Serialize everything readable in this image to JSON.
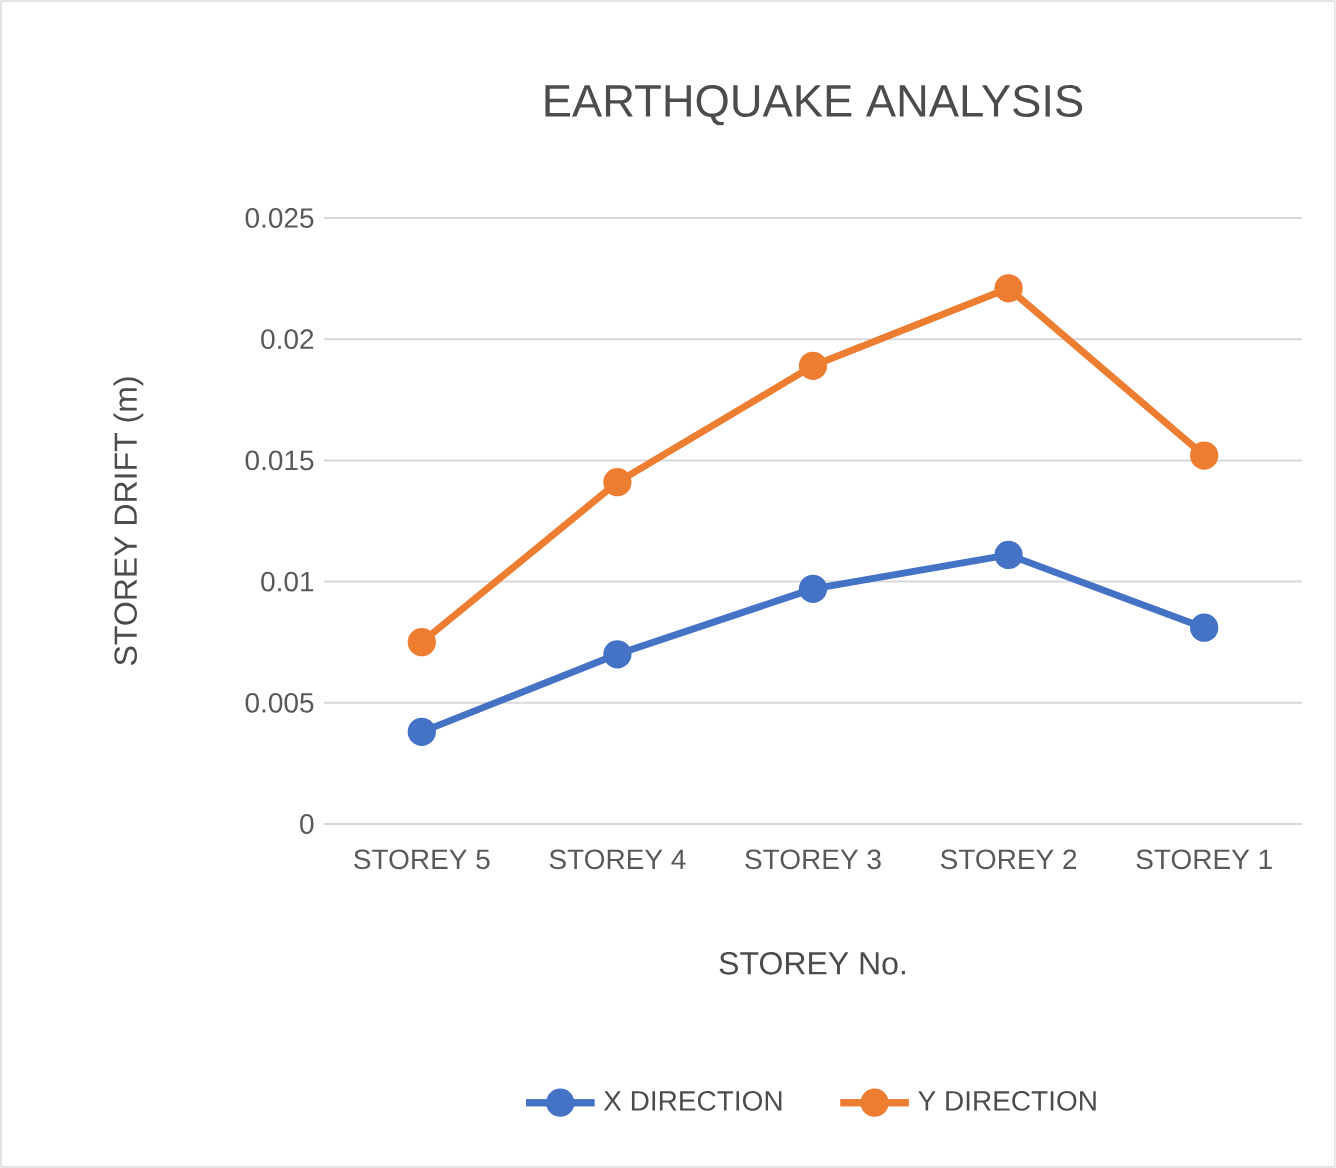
{
  "chart_data": {
    "type": "line",
    "title": "EARTHQUAKE ANALYSIS",
    "xlabel": "STOREY No.",
    "ylabel": "STOREY DRIFT (m)",
    "categories": [
      "STOREY 5",
      "STOREY 4",
      "STOREY 3",
      "STOREY 2",
      "STOREY 1"
    ],
    "series": [
      {
        "name": "X DIRECTION",
        "color": "#4472c4",
        "values": [
          0.0038,
          0.007,
          0.0097,
          0.0111,
          0.0081
        ]
      },
      {
        "name": "Y DIRECTION",
        "color": "#ed7d31",
        "values": [
          0.0075,
          0.0141,
          0.0189,
          0.0221,
          0.0152
        ]
      }
    ],
    "ylim": [
      0,
      0.025
    ],
    "yticks": [
      0,
      0.005,
      0.01,
      0.015,
      0.02,
      0.025
    ],
    "grid": "y",
    "legend": "bottom",
    "marker": "circle",
    "line_style": "solid"
  }
}
